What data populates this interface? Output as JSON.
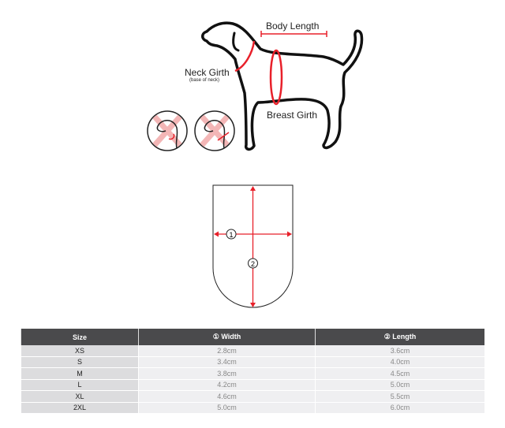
{
  "dog_diagram": {
    "body_length": "Body Length",
    "neck_girth": "Neck Girth",
    "neck_girth_note": "(base of neck)",
    "breast_girth": "Breast Girth"
  },
  "tag_diagram": {
    "width_marker": "1",
    "length_marker": "2"
  },
  "size_table": {
    "headers": [
      "Size",
      "① Width",
      "② Length"
    ],
    "rows": [
      [
        "XS",
        "2.8cm",
        "3.6cm"
      ],
      [
        "S",
        "3.4cm",
        "4.0cm"
      ],
      [
        "M",
        "3.8cm",
        "4.5cm"
      ],
      [
        "L",
        "4.2cm",
        "5.0cm"
      ],
      [
        "XL",
        "4.6cm",
        "5.5cm"
      ],
      [
        "2XL",
        "5.0cm",
        "6.0cm"
      ]
    ]
  },
  "colors": {
    "accent": "#e8202a",
    "header": "#4a4a4c"
  }
}
